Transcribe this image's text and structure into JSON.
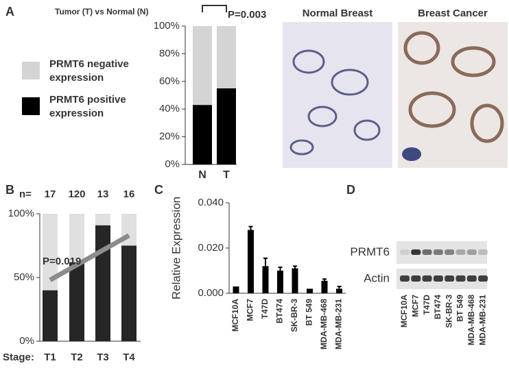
{
  "chart_data": [
    {
      "type": "stacked-bar",
      "panel": "A",
      "title": "Tumor (T) vs Normal (N)",
      "categories": [
        "N",
        "T"
      ],
      "series": [
        {
          "name": "PRMT6 positive expression",
          "color": "#000000",
          "values": [
            43,
            55
          ]
        },
        {
          "name": "PRMT6 negative expression",
          "color": "#d4d4d4",
          "values": [
            57,
            45
          ]
        }
      ],
      "ylim": [
        0,
        100
      ],
      "yticks": [
        {
          "value": 0,
          "label": "0%"
        },
        {
          "value": 20,
          "label": "20%"
        },
        {
          "value": 40,
          "label": "40%"
        },
        {
          "value": 60,
          "label": "60%"
        },
        {
          "value": 80,
          "label": "80%"
        },
        {
          "value": 100,
          "label": "100%"
        }
      ],
      "annotation": "P=0.003"
    },
    {
      "type": "stacked-bar",
      "panel": "B",
      "x_label": "Stage:",
      "categories": [
        "T1",
        "T2",
        "T3",
        "T4"
      ],
      "series": [
        {
          "name": "PRMT6 positive expression",
          "color": "#262626",
          "values": [
            40,
            62,
            91,
            75
          ]
        },
        {
          "name": "PRMT6 negative expression",
          "color": "#e0e0e0",
          "values": [
            60,
            38,
            9,
            25
          ]
        }
      ],
      "n_label": "n=",
      "n": [
        17,
        120,
        13,
        16
      ],
      "ylim": [
        0,
        100
      ],
      "yticks": [
        {
          "value": 0,
          "label": "0%"
        },
        {
          "value": 50,
          "label": "50%"
        },
        {
          "value": 100,
          "label": "100%"
        }
      ],
      "trend_line": {
        "start": 48,
        "end": 83,
        "color": "#8c8c8c"
      },
      "annotation": "P=0.019"
    },
    {
      "type": "bar",
      "panel": "C",
      "y_label": "Relative Expression",
      "color": "#000000",
      "categories": [
        "MCF10A",
        "MCF7",
        "T47D",
        "BT474",
        "SK-BR-3",
        "BT 549",
        "MDA-MB-468",
        "MDA-MB-231"
      ],
      "values": [
        0.003,
        0.028,
        0.012,
        0.01,
        0.011,
        0.002,
        0.0055,
        0.002
      ],
      "errors": [
        0,
        0.0015,
        0.0035,
        0.0015,
        0.001,
        0,
        0.0008,
        0.001
      ],
      "ylim": [
        0,
        0.04
      ],
      "yticks": [
        {
          "value": 0,
          "label": "0.000"
        },
        {
          "value": 0.02,
          "label": "0.020"
        },
        {
          "value": 0.04,
          "label": "0.040"
        }
      ]
    }
  ],
  "images": {
    "titles": [
      "Normal Breast",
      "Breast Cancer"
    ]
  },
  "blot": {
    "panel": "D",
    "rows": [
      "PRMT6",
      "Actin"
    ],
    "lanes": [
      "MCF10A",
      "MCF7",
      "T47D",
      "BT474",
      "SK-BR-3",
      "BT 549",
      "MDA-MB-468",
      "MDA-MB-231"
    ]
  }
}
